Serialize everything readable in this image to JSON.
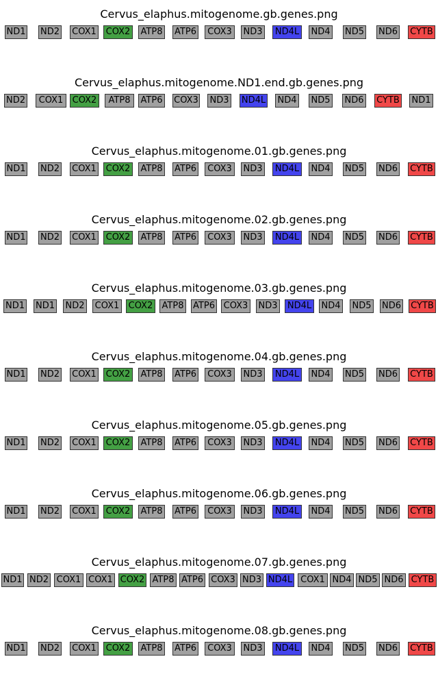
{
  "colors": {
    "default": "#a0a0a0",
    "COX2": "#44a044",
    "ND4L": "#4444ee",
    "CYTB": "#f04848"
  },
  "tracks": [
    {
      "title": "Cervus_elaphus.mitogenome.gb.genes.png",
      "genes": [
        "ND1",
        "ND2",
        "COX1",
        "COX2",
        "ATP8",
        "ATP6",
        "COX3",
        "ND3",
        "ND4L",
        "ND4",
        "ND5",
        "ND6",
        "CYTB"
      ]
    },
    {
      "title": "Cervus_elaphus.mitogenome.ND1.end.gb.genes.png",
      "genes": [
        "ND2",
        "COX1",
        "COX2",
        "ATP8",
        "ATP6",
        "COX3",
        "ND3",
        "ND4L",
        "ND4",
        "ND5",
        "ND6",
        "CYTB",
        "ND1"
      ]
    },
    {
      "title": "Cervus_elaphus.mitogenome.01.gb.genes.png",
      "genes": [
        "ND1",
        "ND2",
        "COX1",
        "COX2",
        "ATP8",
        "ATP6",
        "COX3",
        "ND3",
        "ND4L",
        "ND4",
        "ND5",
        "ND6",
        "CYTB"
      ]
    },
    {
      "title": "Cervus_elaphus.mitogenome.02.gb.genes.png",
      "genes": [
        "ND1",
        "ND2",
        "COX1",
        "COX2",
        "ATP8",
        "ATP6",
        "COX3",
        "ND3",
        "ND4L",
        "ND4",
        "ND5",
        "ND6",
        "CYTB"
      ]
    },
    {
      "title": "Cervus_elaphus.mitogenome.03.gb.genes.png",
      "genes": [
        "ND1",
        "ND1",
        "ND2",
        "COX1",
        "COX2",
        "ATP8",
        "ATP6",
        "COX3",
        "ND3",
        "ND4L",
        "ND4",
        "ND5",
        "ND6",
        "CYTB"
      ]
    },
    {
      "title": "Cervus_elaphus.mitogenome.04.gb.genes.png",
      "genes": [
        "ND1",
        "ND2",
        "COX1",
        "COX2",
        "ATP8",
        "ATP6",
        "COX3",
        "ND3",
        "ND4L",
        "ND4",
        "ND5",
        "ND6",
        "CYTB"
      ]
    },
    {
      "title": "Cervus_elaphus.mitogenome.05.gb.genes.png",
      "genes": [
        "ND1",
        "ND2",
        "COX1",
        "COX2",
        "ATP8",
        "ATP6",
        "COX3",
        "ND3",
        "ND4L",
        "ND4",
        "ND5",
        "ND6",
        "CYTB"
      ]
    },
    {
      "title": "Cervus_elaphus.mitogenome.06.gb.genes.png",
      "genes": [
        "ND1",
        "ND2",
        "COX1",
        "COX2",
        "ATP8",
        "ATP6",
        "COX3",
        "ND3",
        "ND4L",
        "ND4",
        "ND5",
        "ND6",
        "CYTB"
      ]
    },
    {
      "title": "Cervus_elaphus.mitogenome.07.gb.genes.png",
      "genes": [
        "ND1",
        "ND2",
        "COX1",
        "COX1",
        "COX2",
        "ATP8",
        "ATP6",
        "COX3",
        "ND3",
        "ND4L",
        "COX1",
        "ND4",
        "ND5",
        "ND6",
        "CYTB"
      ]
    },
    {
      "title": "Cervus_elaphus.mitogenome.08.gb.genes.png",
      "genes": [
        "ND1",
        "ND2",
        "COX1",
        "COX2",
        "ATP8",
        "ATP6",
        "COX3",
        "ND3",
        "ND4L",
        "ND4",
        "ND5",
        "ND6",
        "CYTB"
      ]
    }
  ]
}
